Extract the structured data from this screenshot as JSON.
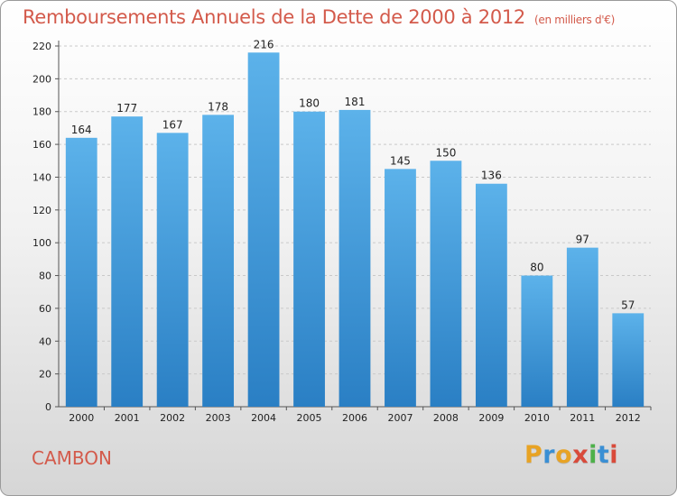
{
  "header": {
    "title": "Remboursements Annuels de la Dette de 2000 à 2012",
    "subtitle": "(en milliers d'€)"
  },
  "footer": {
    "city": "CAMBON",
    "logo_letters": [
      "P",
      "r",
      "o",
      "x",
      "i",
      "t",
      "i"
    ],
    "logo_colors": [
      "#e8a324",
      "#3a8fd4",
      "#e8a324",
      "#d94a3a",
      "#4db04a",
      "#3a8fd4",
      "#d94a3a"
    ]
  },
  "chart_data": {
    "type": "bar",
    "title": "Remboursements Annuels de la Dette de 2000 à 2012",
    "xlabel": "",
    "ylabel": "",
    "categories": [
      "2000",
      "2001",
      "2002",
      "2003",
      "2004",
      "2005",
      "2006",
      "2007",
      "2008",
      "2009",
      "2010",
      "2011",
      "2012"
    ],
    "values": [
      164,
      177,
      167,
      178,
      216,
      180,
      181,
      145,
      150,
      136,
      80,
      97,
      57
    ],
    "ylim": [
      0,
      220
    ],
    "yticks": [
      0,
      20,
      40,
      60,
      80,
      100,
      120,
      140,
      160,
      180,
      200,
      220
    ],
    "grid": true,
    "colors": {
      "bar_top": "#5cb2ea",
      "bar_bottom": "#2a7fc4",
      "grid": "#c9c9c9",
      "axis": "#555555"
    }
  }
}
